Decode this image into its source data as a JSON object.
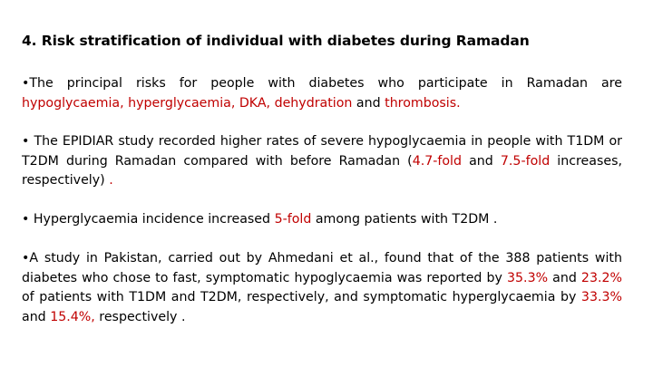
{
  "title": "4. Risk stratification of individual with diabetes during Ramadan",
  "p1": {
    "lead": "•The principal risks for people with diabetes who participate in Ramadan are ",
    "h1": "hypoglycaemia, hyperglycaemia, DKA, dehydration",
    "mid": " and ",
    "h2": "thrombosis."
  },
  "p2": {
    "lead": "• The EPIDIAR study recorded higher rates of severe hypoglycaemia in people with T1DM or T2DM during Ramadan compared with before Ramadan (",
    "h1": "4.7-fold",
    "mid": " and ",
    "h2": "7.5-fold",
    "tail": " increases, respectively)",
    "end": " ."
  },
  "p3": {
    "lead": "• Hyperglycaemia incidence increased ",
    "h1": "5-fold",
    "tail": " among patients with T2DM ."
  },
  "p4": {
    "lead": "•A study in Pakistan, carried out by Ahmedani et al., found that of the 388 patients with diabetes who chose to fast, symptomatic hypoglycaemia was reported by ",
    "h1": "35.3%",
    "mid1": " and ",
    "h2": "23.2%",
    "mid2": " of patients with T1DM and T2DM, respectively, and symptomatic hyperglycaemia by ",
    "h3": "33.3%",
    "mid3": " and ",
    "h4": "15.4%,",
    "tail": " respectively ."
  },
  "colors": {
    "highlight": "#c00000",
    "text": "#000000",
    "background": "#ffffff"
  }
}
